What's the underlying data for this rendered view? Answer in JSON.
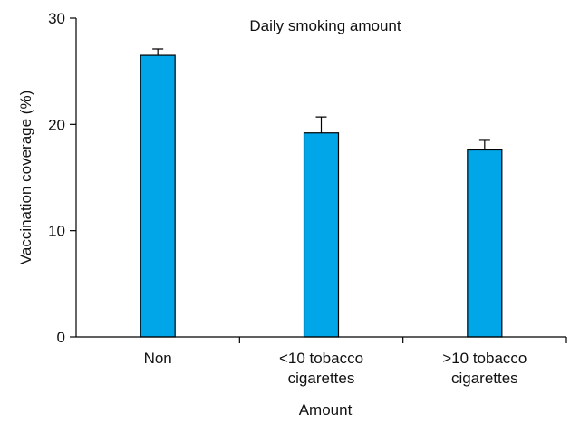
{
  "chart_data": {
    "type": "bar",
    "title": "Daily smoking amount",
    "xlabel": "Amount",
    "ylabel": "Vaccination coverage (%)",
    "ylim": [
      0,
      30
    ],
    "yticks": [
      "0",
      "10",
      "20",
      "30"
    ],
    "categories": [
      [
        "Non"
      ],
      [
        "<10 tobacco",
        "cigarettes"
      ],
      [
        ">10 tobacco",
        "cigarettes"
      ]
    ],
    "values": [
      26.5,
      19.2,
      17.6
    ],
    "error_upper": [
      27.1,
      20.7,
      18.5
    ],
    "bar_color": "#00a6e8",
    "grid": false,
    "legend": "none"
  }
}
